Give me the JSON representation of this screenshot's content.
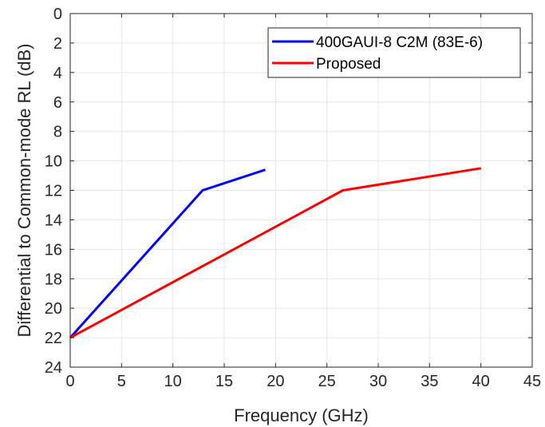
{
  "chart_data": {
    "type": "line",
    "xlabel": "Frequency (GHz)",
    "ylabel": "Differential to Common-mode RL (dB)",
    "xlim": [
      0,
      45
    ],
    "ylim": [
      0,
      24
    ],
    "y_reversed": true,
    "xticks": [
      0,
      5,
      10,
      15,
      20,
      25,
      30,
      35,
      40,
      45
    ],
    "yticks": [
      0,
      2,
      4,
      6,
      8,
      10,
      12,
      14,
      16,
      18,
      20,
      22,
      24
    ],
    "grid": true,
    "legend_position": "top-right",
    "series": [
      {
        "name": "400GAUI-8 C2M (83E-6)",
        "color": "#0000ff",
        "x": [
          0,
          12.89,
          19
        ],
        "y": [
          22,
          12,
          10.6
        ]
      },
      {
        "name": "Proposed",
        "color": "#ff0000",
        "x": [
          0,
          26.56,
          40
        ],
        "y": [
          22,
          12,
          10.5
        ]
      }
    ]
  }
}
